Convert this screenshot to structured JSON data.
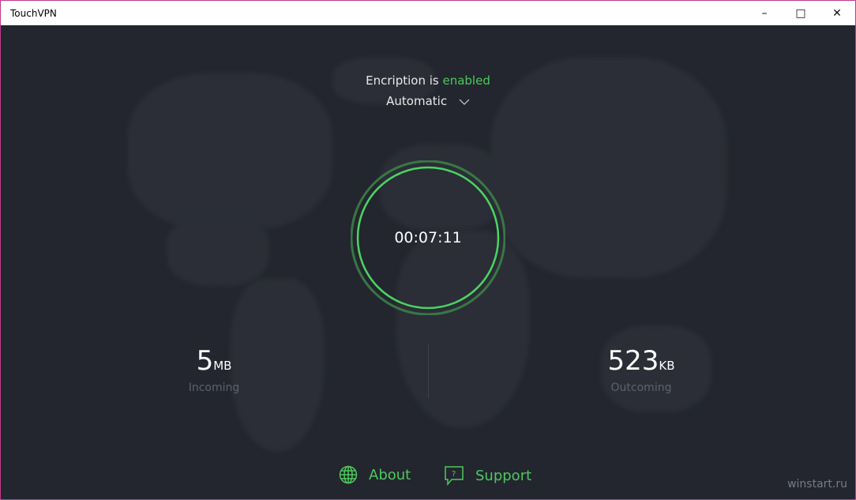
{
  "window": {
    "title": "TouchVPN"
  },
  "status": {
    "prefix": "Encription is ",
    "state": "enabled",
    "mode": "Automatic"
  },
  "timer": "00:07:11",
  "incoming": {
    "value": "5",
    "unit": "MB",
    "label": "Incoming"
  },
  "outgoing": {
    "value": "523",
    "unit": "KB",
    "label": "Outcoming"
  },
  "footer": {
    "about": "About",
    "support": "Support"
  },
  "watermark": "winstart.ru",
  "colors": {
    "accent": "#4cc95c",
    "background": "#23262e"
  }
}
